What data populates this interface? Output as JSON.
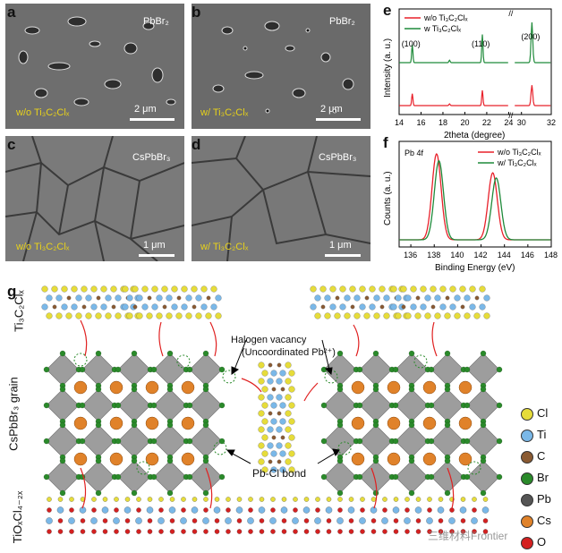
{
  "panels": {
    "a": {
      "label": "a",
      "material": "PbBr₂",
      "condition": "w/o Ti₃C₂Clₓ",
      "scale": "2 μm"
    },
    "b": {
      "label": "b",
      "material": "PbBr₂",
      "condition": "w/  Ti₃C₂Clₓ",
      "scale": "2 μm"
    },
    "c": {
      "label": "c",
      "material": "CsPbBr₃",
      "condition": "w/o Ti₃C₂Clₓ",
      "scale": "1 μm"
    },
    "d": {
      "label": "d",
      "material": "CsPbBr₃",
      "condition": "w/  Ti₃C₂Clₓ",
      "scale": "1 μm"
    },
    "e": {
      "label": "e"
    },
    "f": {
      "label": "f"
    },
    "g": {
      "label": "g"
    }
  },
  "colors": {
    "red": "#e8202a",
    "green": "#1f8a3a",
    "yellow_text": "#e8d21a"
  },
  "chart_data": [
    {
      "type": "line",
      "id": "xrd",
      "xlabel": "2theta (degree)",
      "ylabel": "Intensity (a. u.)",
      "xlim": [
        14,
        32
      ],
      "x_ticks": [
        "14",
        "16",
        "18",
        "20",
        "22",
        "24",
        "30",
        "32"
      ],
      "axis_break": "//",
      "peak_labels": [
        "(100)",
        "(110)",
        "(200)"
      ],
      "peak_positions": [
        15.2,
        21.6,
        30.7
      ],
      "series": [
        {
          "name": "w/o Ti₃C₂Clₓ",
          "color": "#e8202a",
          "peaks": [
            15.2,
            18.6,
            21.6,
            30.7
          ],
          "heights": [
            0.35,
            0.05,
            0.45,
            0.6
          ]
        },
        {
          "name": "w  Ti₃C₂Clₓ",
          "color": "#1f8a3a",
          "peaks": [
            15.2,
            18.6,
            21.6,
            30.7
          ],
          "heights": [
            0.45,
            0.06,
            0.7,
            1.0
          ]
        }
      ]
    },
    {
      "type": "line",
      "id": "xps",
      "annotation": "Pb 4f",
      "xlabel": "Binding Energy (eV)",
      "ylabel": "Counts (a. u.)",
      "xlim": [
        135,
        148
      ],
      "x_ticks": [
        "136",
        "138",
        "140",
        "142",
        "144",
        "146",
        "148"
      ],
      "series": [
        {
          "name": "w/o Ti₃C₂Clₓ",
          "color": "#e8202a",
          "peaks": [
            138.2,
            143.0
          ],
          "heights": [
            1.0,
            0.78
          ]
        },
        {
          "name": "w/  Ti₃C₂Clₓ",
          "color": "#1f8a3a",
          "peaks": [
            138.4,
            143.3
          ],
          "heights": [
            0.92,
            0.72
          ]
        }
      ]
    }
  ],
  "schematic": {
    "row_label_top": "Ti₃C₂Clₓ",
    "row_label_mid": "CsPbBr₃ grain",
    "row_label_bot": "TiOₓCl₄₋₂ₓ",
    "annotation_vacancy": "Halogen vacancy",
    "annotation_uncoord": "(Uncoordinated Pb²⁺)",
    "annotation_bond": "Pb-Cl bond",
    "legend": [
      {
        "symbol": "Cl",
        "color": "#e6dc3a"
      },
      {
        "symbol": "Ti",
        "color": "#7ab8e8"
      },
      {
        "symbol": "C",
        "color": "#8a5a32"
      },
      {
        "symbol": "Br",
        "color": "#2a8a2a"
      },
      {
        "symbol": "Pb",
        "color": "#555555"
      },
      {
        "symbol": "Cs",
        "color": "#e0822a"
      },
      {
        "symbol": "O",
        "color": "#d42020"
      }
    ]
  },
  "watermark": "三维材料Frontier"
}
